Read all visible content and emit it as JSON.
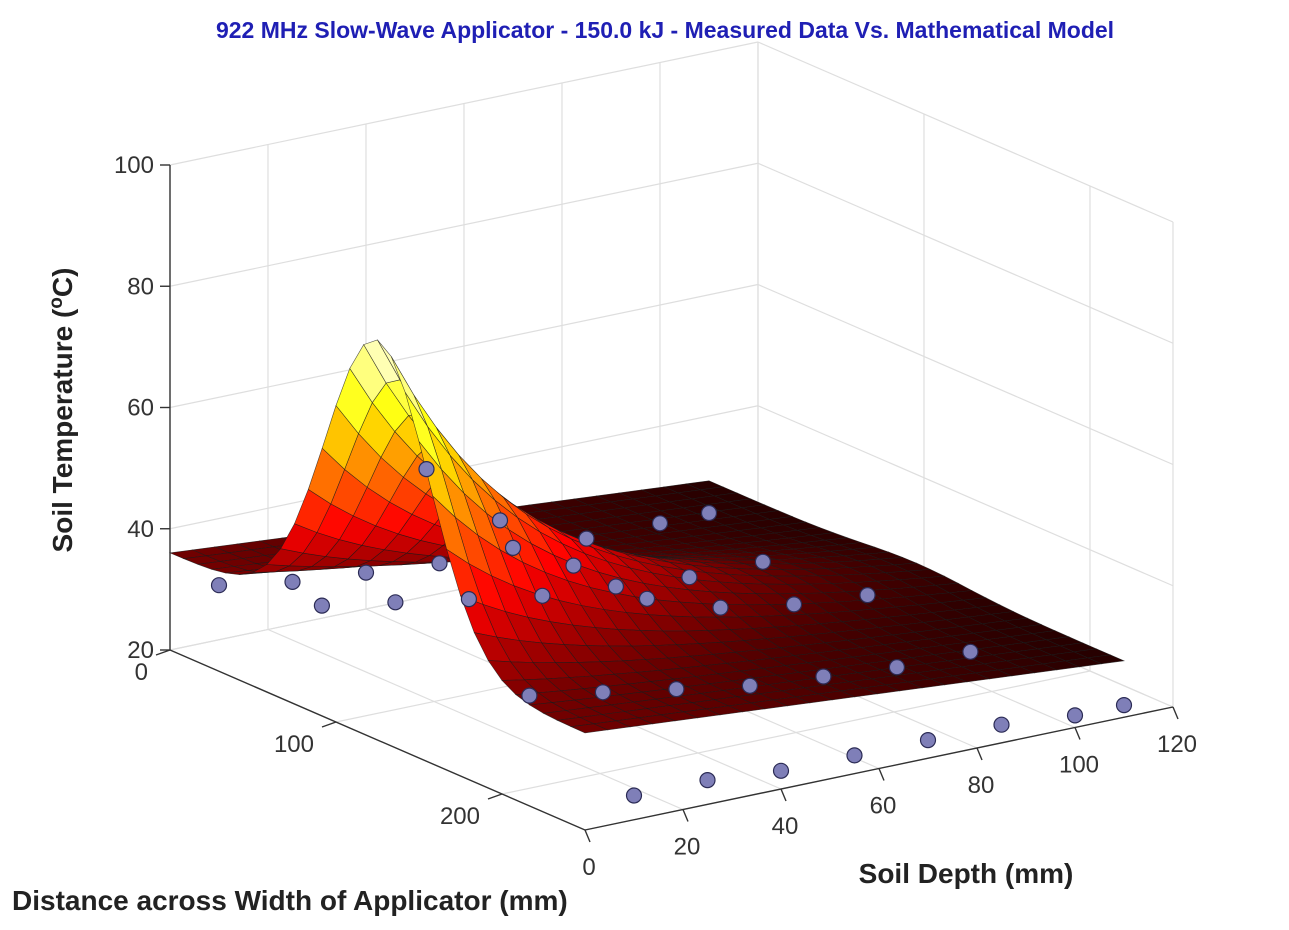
{
  "chart_data": {
    "type": "surface3d",
    "title": "922 MHz Slow-Wave Applicator - 150.0 kJ - Measured Data Vs. Mathematical Model",
    "title_color": "#1f1fb4",
    "xlabel": "Distance across Width of Applicator (mm)",
    "ylabel": "Soil Depth (mm)",
    "zlabel": "Soil Temperature (°C)",
    "zlabel_parts": {
      "pre": "Soil Temperature (",
      "sup": "o",
      "post": "C)"
    },
    "xlim": [
      0,
      250
    ],
    "ylim": [
      0,
      120
    ],
    "zlim": [
      20,
      100
    ],
    "x_ticks": [
      0,
      100,
      200
    ],
    "y_ticks": [
      0,
      20,
      40,
      60,
      80,
      100,
      120
    ],
    "z_ticks": [
      20,
      40,
      60,
      80,
      100
    ],
    "colormap": "hot",
    "grid": true,
    "surface_model": {
      "description": "Gaussian heated region around applicator centre",
      "x_center": 125,
      "x_range": [
        0,
        250
      ],
      "y_range": [
        0,
        110
      ],
      "grid_x_steps": 30,
      "grid_y_steps": 24
    },
    "measured_points": [
      {
        "x": 0,
        "y": 10,
        "t": 29
      },
      {
        "x": 0,
        "y": 25,
        "t": 27
      },
      {
        "x": 0,
        "y": 40,
        "t": 26
      },
      {
        "x": 0,
        "y": 55,
        "t": 25
      },
      {
        "x": 0,
        "y": 70,
        "t": 25
      },
      {
        "x": 0,
        "y": 85,
        "t": 24
      },
      {
        "x": 0,
        "y": 100,
        "t": 24
      },
      {
        "x": 0,
        "y": 110,
        "t": 24
      },
      {
        "x": 62,
        "y": 10,
        "t": 33
      },
      {
        "x": 62,
        "y": 25,
        "t": 31
      },
      {
        "x": 62,
        "y": 40,
        "t": 29
      },
      {
        "x": 62,
        "y": 55,
        "t": 27
      },
      {
        "x": 62,
        "y": 70,
        "t": 26
      },
      {
        "x": 62,
        "y": 85,
        "t": 25
      },
      {
        "x": 62,
        "y": 100,
        "t": 25
      },
      {
        "x": 125,
        "y": 10,
        "t": 63
      },
      {
        "x": 125,
        "y": 25,
        "t": 52
      },
      {
        "x": 125,
        "y": 40,
        "t": 42
      },
      {
        "x": 125,
        "y": 55,
        "t": 34
      },
      {
        "x": 125,
        "y": 70,
        "t": 30
      },
      {
        "x": 125,
        "y": 85,
        "t": 28
      },
      {
        "x": 125,
        "y": 100,
        "t": 27
      },
      {
        "x": 187,
        "y": 10,
        "t": 33
      },
      {
        "x": 187,
        "y": 25,
        "t": 31
      },
      {
        "x": 187,
        "y": 40,
        "t": 29
      },
      {
        "x": 187,
        "y": 55,
        "t": 27
      },
      {
        "x": 187,
        "y": 70,
        "t": 26
      },
      {
        "x": 187,
        "y": 85,
        "t": 25
      },
      {
        "x": 187,
        "y": 100,
        "t": 25
      },
      {
        "x": 250,
        "y": 10,
        "t": 24
      },
      {
        "x": 250,
        "y": 25,
        "t": 24
      },
      {
        "x": 250,
        "y": 40,
        "t": 23
      },
      {
        "x": 250,
        "y": 55,
        "t": 23
      },
      {
        "x": 250,
        "y": 70,
        "t": 23
      },
      {
        "x": 250,
        "y": 85,
        "t": 23
      },
      {
        "x": 250,
        "y": 100,
        "t": 22
      },
      {
        "x": 250,
        "y": 110,
        "t": 22
      }
    ],
    "marker_color": "#7f7fb8"
  }
}
